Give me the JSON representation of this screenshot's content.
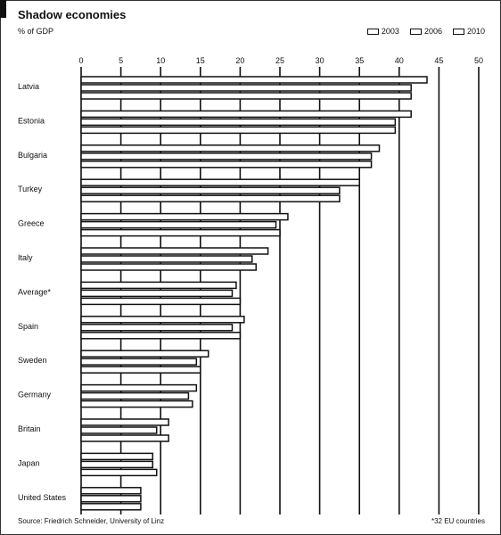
{
  "chart_data": {
    "type": "bar",
    "orientation": "horizontal",
    "title": "Shadow economies",
    "subtitle": "% of GDP",
    "source": "Source: Friedrich Schneider, University of Linz",
    "footnote": "*32 EU countries",
    "categories": [
      "Latvia",
      "Estonia",
      "Bulgaria",
      "Turkey",
      "Greece",
      "Italy",
      "Average*",
      "Spain",
      "Sweden",
      "Germany",
      "Britain",
      "Japan",
      "United States"
    ],
    "series": [
      {
        "name": "2003",
        "values": [
          43.5,
          41.5,
          37.5,
          35.0,
          26.0,
          23.5,
          19.5,
          20.5,
          16.0,
          14.5,
          11.0,
          9.0,
          7.5
        ]
      },
      {
        "name": "2006",
        "values": [
          41.5,
          39.5,
          36.5,
          32.5,
          24.5,
          21.5,
          19.0,
          19.0,
          14.5,
          13.5,
          9.5,
          9.0,
          7.5
        ]
      },
      {
        "name": "2010",
        "values": [
          41.5,
          39.5,
          36.5,
          32.5,
          25.0,
          22.0,
          20.0,
          20.0,
          15.0,
          14.0,
          11.0,
          9.5,
          7.5
        ]
      }
    ],
    "xlim": [
      0,
      50
    ],
    "xticks": [
      0,
      5,
      10,
      15,
      20,
      25,
      30,
      35,
      40,
      45,
      50
    ],
    "grid": true,
    "legend_position": "top-right"
  }
}
